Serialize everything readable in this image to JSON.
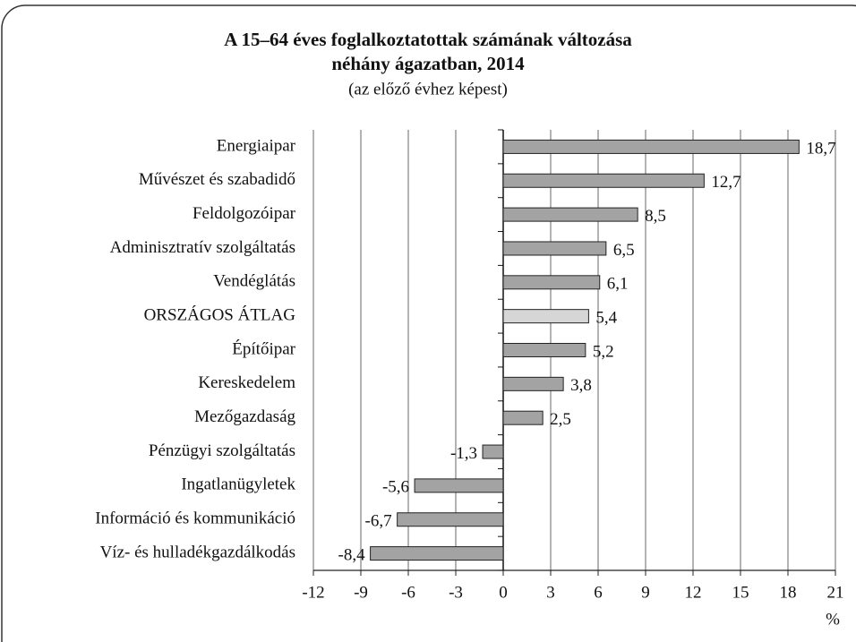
{
  "chart_data": {
    "type": "hbar",
    "title": [
      "A 15–64 éves foglalkoztatottak számának változása",
      "néhány ágazatban, 2014"
    ],
    "subtitle": "(az előző évhez képest)",
    "x_label": "%",
    "categories": [
      "Energiaipar",
      "Művészet és szabadidő",
      "Feldolgozóipar",
      "Adminisztratív szolgáltatás",
      "Vendéglátás",
      "ORSZÁGOS ÁTLAG",
      "Építőipar",
      "Kereskedelem",
      "Mezőgazdaság",
      "Pénzügyi szolgáltatás",
      "Ingatlanügyletek",
      "Információ és kommunikáció",
      "Víz- és hulladékgazdálkodás"
    ],
    "values": [
      18.7,
      12.7,
      8.5,
      6.5,
      6.1,
      5.4,
      5.2,
      3.8,
      2.5,
      -1.3,
      -5.6,
      -6.7,
      -8.4
    ],
    "value_labels": [
      "18,7",
      "12,7",
      "8,5",
      "6,5",
      "6,1",
      "5,4",
      "5,2",
      "3,8",
      "2,5",
      "-1,3",
      "-5,6",
      "-6,7",
      "-8,4"
    ],
    "colors": [
      "#a3a3a3",
      "#a3a3a3",
      "#a3a3a3",
      "#a3a3a3",
      "#a3a3a3",
      "#d6d6d6",
      "#a3a3a3",
      "#a3a3a3",
      "#a3a3a3",
      "#a3a3a3",
      "#a3a3a3",
      "#a3a3a3",
      "#a3a3a3"
    ],
    "xlim": [
      -12,
      21
    ],
    "xticks": [
      -12,
      -9,
      -6,
      -3,
      0,
      3,
      6,
      9,
      12,
      15,
      18,
      21
    ],
    "grid": true
  }
}
